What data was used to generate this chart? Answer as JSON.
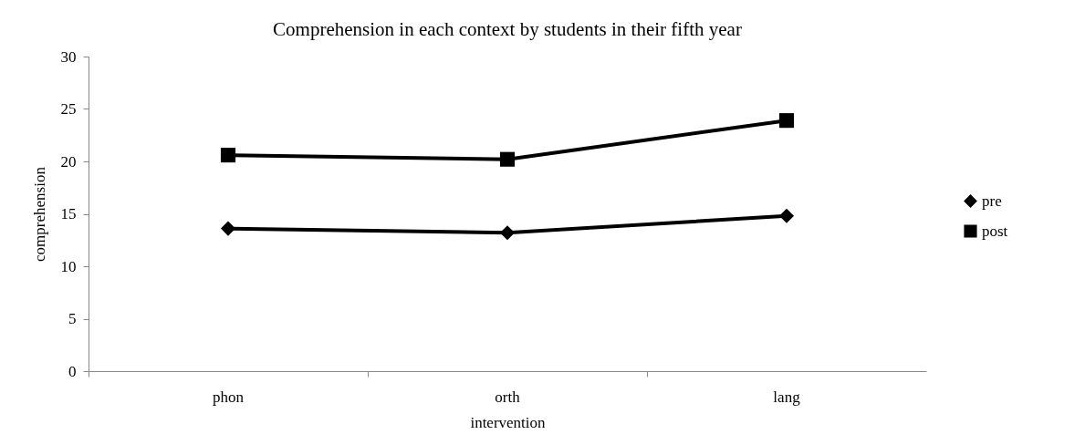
{
  "chart_data": {
    "type": "line",
    "title": "Comprehension in each context by students in their fifth year",
    "xlabel": "intervention",
    "ylabel": "comprehension",
    "categories": [
      "phon",
      "orth",
      "lang"
    ],
    "series": [
      {
        "name": "pre",
        "color": "#000000",
        "marker": "diamond",
        "values": [
          13.6,
          13.2,
          14.8
        ]
      },
      {
        "name": "post",
        "color": "#000000",
        "marker": "square",
        "values": [
          20.6,
          20.2,
          23.9
        ]
      }
    ],
    "ylim": [
      0,
      30
    ],
    "yticks": [
      0,
      5,
      10,
      15,
      20,
      25,
      30
    ],
    "grid": false,
    "legend": "right",
    "line_style": "solid"
  }
}
